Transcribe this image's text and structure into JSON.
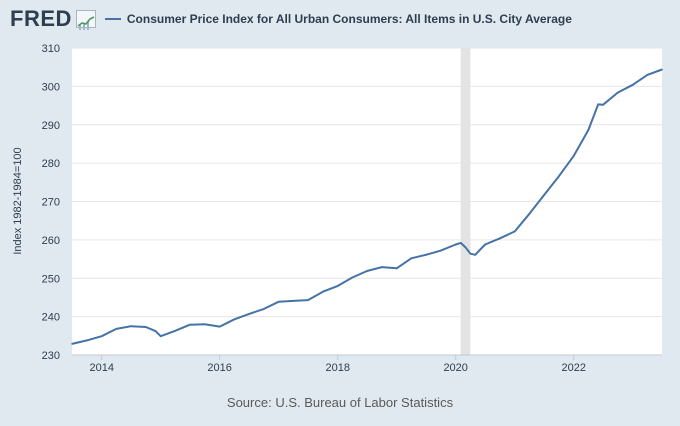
{
  "header": {
    "logo_text": "FRED",
    "logo_icon": "fred-chart-icon",
    "series_title": "Consumer Price Index for All Urban Consumers: All Items in U.S. City Average"
  },
  "source_text": "Source: U.S. Bureau of Labor Statistics",
  "colors": {
    "background": "#e1e9f0",
    "plot_background": "#ffffff",
    "series_line": "#4572a7",
    "recession_shade": "#e3e3e3",
    "grid": "#e6e6e6",
    "text": "#2d3e50"
  },
  "chart_data": {
    "type": "line",
    "title": "Consumer Price Index for All Urban Consumers: All Items in U.S. City Average",
    "xlabel": "",
    "ylabel": "Index 1982-1984=100",
    "ylim": [
      230,
      310
    ],
    "yticks": [
      230,
      240,
      250,
      260,
      270,
      280,
      290,
      300,
      310
    ],
    "xlim": [
      "2013-07-01",
      "2023-07-01"
    ],
    "xticks": [
      "2014",
      "2016",
      "2018",
      "2020",
      "2022"
    ],
    "grid": true,
    "legend": "top-left",
    "recessions": [
      {
        "start": "2020-02-01",
        "end": "2020-04-01"
      }
    ],
    "series": [
      {
        "name": "Consumer Price Index for All Urban Consumers: All Items in U.S. City Average",
        "x": [
          "2013-07-01",
          "2013-10-01",
          "2014-01-01",
          "2014-04-01",
          "2014-07-01",
          "2014-10-01",
          "2014-12-01",
          "2015-01-01",
          "2015-04-01",
          "2015-07-01",
          "2015-10-01",
          "2016-01-01",
          "2016-04-01",
          "2016-07-01",
          "2016-10-01",
          "2017-01-01",
          "2017-04-01",
          "2017-07-01",
          "2017-10-01",
          "2018-01-01",
          "2018-04-01",
          "2018-07-01",
          "2018-10-01",
          "2019-01-01",
          "2019-04-01",
          "2019-07-01",
          "2019-10-01",
          "2020-01-01",
          "2020-02-01",
          "2020-03-01",
          "2020-04-01",
          "2020-05-01",
          "2020-07-01",
          "2020-10-01",
          "2021-01-01",
          "2021-04-01",
          "2021-07-01",
          "2021-10-01",
          "2022-01-01",
          "2022-04-01",
          "2022-06-01",
          "2022-07-01",
          "2022-10-01",
          "2023-01-01",
          "2023-04-01",
          "2023-07-01"
        ],
        "y": [
          232.9,
          233.8,
          234.9,
          236.8,
          237.5,
          237.3,
          236.2,
          234.9,
          236.3,
          237.9,
          238.0,
          237.4,
          239.3,
          240.7,
          242.0,
          243.9,
          244.1,
          244.3,
          246.5,
          248.0,
          250.2,
          251.9,
          252.9,
          252.6,
          255.2,
          256.1,
          257.2,
          258.8,
          259.2,
          258.1,
          256.4,
          256.1,
          258.8,
          260.4,
          262.2,
          266.8,
          271.7,
          276.6,
          281.9,
          288.6,
          295.3,
          295.2,
          298.4,
          300.4,
          303.0,
          304.4
        ]
      }
    ]
  }
}
